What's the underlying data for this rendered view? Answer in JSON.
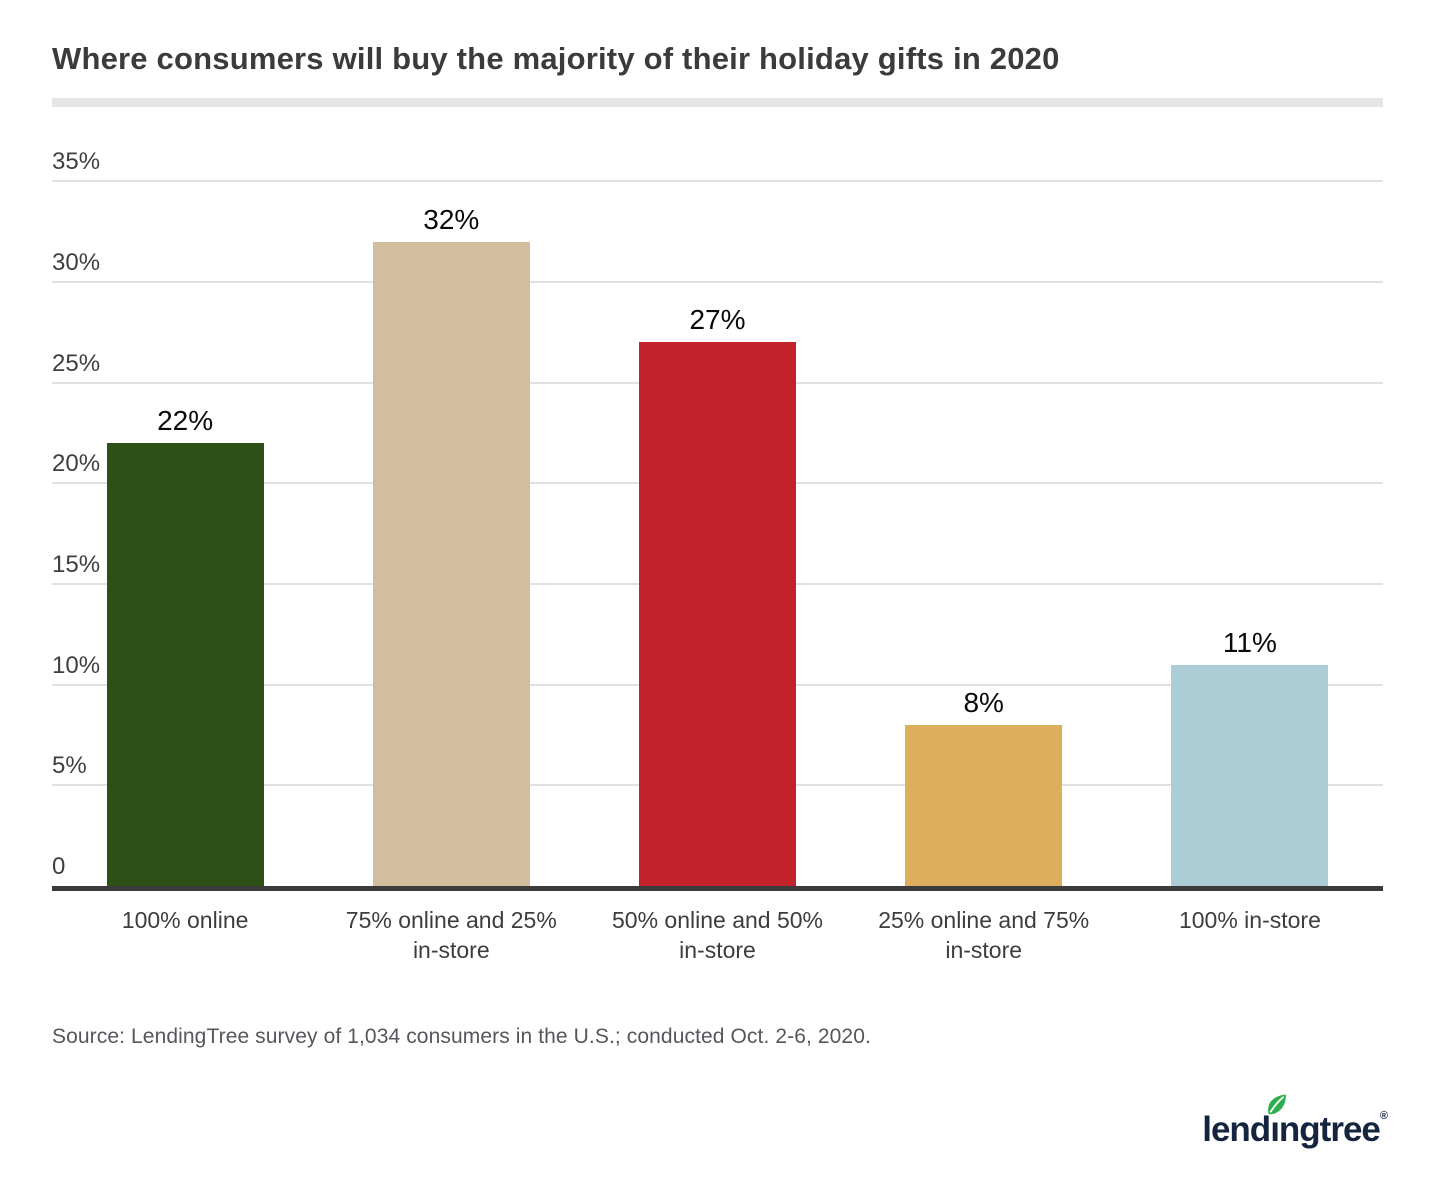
{
  "title": "Where consumers will buy the majority of their holiday gifts in 2020",
  "source": "Source: LendingTree survey of 1,034 consumers in the U.S.; conducted Oct. 2-6, 2020.",
  "logo": {
    "text_pre": "lend",
    "text_i": "ı",
    "text_post": "ngtree",
    "registered": "®",
    "navy": "#16253f",
    "leaf_green": "#2cae4e"
  },
  "chart_data": {
    "type": "bar",
    "title": "Where consumers will buy the majority of their holiday gifts in 2020",
    "categories": [
      "100% online",
      "75% online and 25% in-store",
      "50% online and 50% in-store",
      "25% online and 75% in-store",
      "100% in-store"
    ],
    "values": [
      22,
      32,
      27,
      8,
      11
    ],
    "value_labels": [
      "22%",
      "32%",
      "27%",
      "8%",
      "11%"
    ],
    "bar_colors": [
      "#2d5016",
      "#d3bd9f",
      "#c1222b",
      "#dcae5e",
      "#adcdd6"
    ],
    "xlabel": "",
    "ylabel": "",
    "ylim": [
      0,
      35
    ],
    "yticks": [
      {
        "value": 0,
        "label": "0"
      },
      {
        "value": 5,
        "label": "5%"
      },
      {
        "value": 10,
        "label": "10%"
      },
      {
        "value": 15,
        "label": "15%"
      },
      {
        "value": 20,
        "label": "20%"
      },
      {
        "value": 25,
        "label": "25%"
      },
      {
        "value": 30,
        "label": "30%"
      },
      {
        "value": 35,
        "label": "35%"
      }
    ],
    "grid": true,
    "grid_color": "#e1e1e1",
    "axis_color": "#3b3b3b",
    "legend": "none"
  }
}
